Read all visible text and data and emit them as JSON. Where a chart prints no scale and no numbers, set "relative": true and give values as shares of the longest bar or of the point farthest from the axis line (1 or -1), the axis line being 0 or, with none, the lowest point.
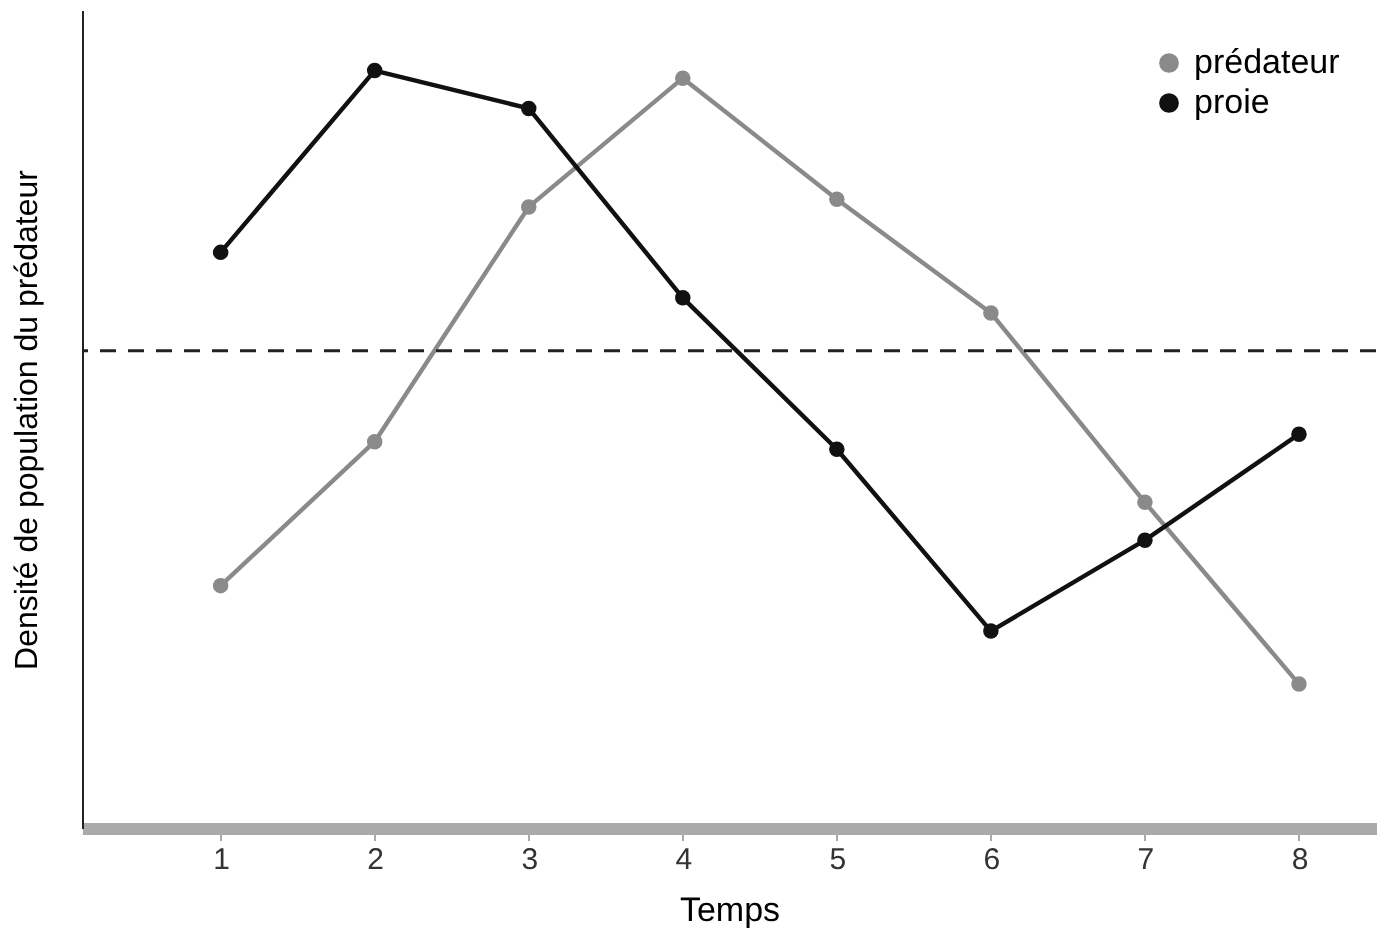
{
  "chart_data": {
    "type": "line",
    "xlabel": "Temps",
    "ylabel": "Densité de population du prédateur",
    "relative": true,
    "x": [
      1,
      2,
      3,
      4,
      5,
      6,
      7,
      8
    ],
    "xlim": [
      0.1,
      8.5
    ],
    "xticks": [
      1,
      2,
      3,
      4,
      5,
      6,
      7,
      8
    ],
    "series": [
      {
        "name": "prédateur",
        "color": "#8a8a8a",
        "values": [
          0.32,
          0.51,
          0.82,
          0.99,
          0.83,
          0.68,
          0.43,
          0.19
        ]
      },
      {
        "name": "proie",
        "color": "#111111",
        "values": [
          0.76,
          1.0,
          0.95,
          0.7,
          0.5,
          0.26,
          0.38,
          0.52
        ]
      }
    ],
    "ref_lines": [
      {
        "axis": "y",
        "value": 0.63,
        "line_style": "dashed",
        "color": "#222222"
      }
    ],
    "marker": "circle",
    "line_style": "solid",
    "legend": "top right",
    "grid": false,
    "tick_labels": "x"
  }
}
